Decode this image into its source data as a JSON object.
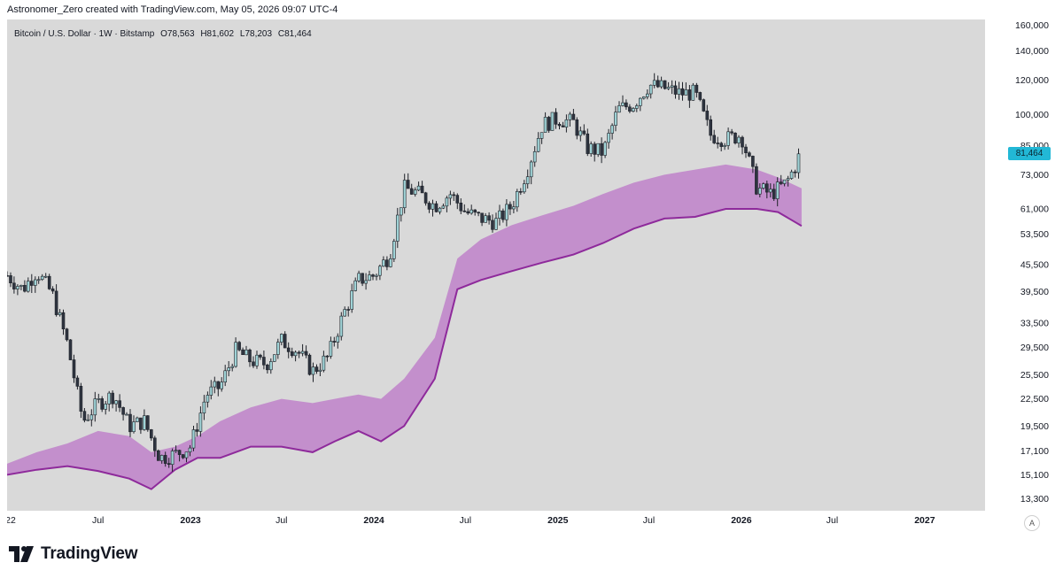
{
  "header": {
    "attribution": "Astronomer_Zero created with TradingView.com, May 05, 2026 09:07 UTC-4"
  },
  "legend": {
    "symbol": "Bitcoin / U.S. Dollar · 1W · Bitstamp",
    "open": "O78,563",
    "high": "H81,602",
    "low": "L78,203",
    "close": "C81,464"
  },
  "price_badge": "81,464",
  "footer": {
    "brand": "TradingView",
    "scale_button": "A"
  },
  "colors": {
    "background": "#d9d9d9",
    "candle_up": "#9fd3d6",
    "candle_down": "#2e3440",
    "band_fill": "#c38fcc",
    "band_line": "#8e2a9b",
    "badge": "#22b8d6"
  },
  "chart_data": {
    "type": "candlestick",
    "title": "",
    "xlabel": "",
    "ylabel": "",
    "y_scale": "log",
    "ylim": [
      12500,
      165000
    ],
    "xlim": [
      "2022-01-01",
      "2027-05-01"
    ],
    "x_ticks": [
      {
        "date": "2022-01-01",
        "label": "22"
      },
      {
        "date": "2022-07-01",
        "label": "Jul"
      },
      {
        "date": "2023-01-01",
        "label": "2023"
      },
      {
        "date": "2023-07-01",
        "label": "Jul"
      },
      {
        "date": "2024-01-01",
        "label": "2024"
      },
      {
        "date": "2024-07-01",
        "label": "Jul"
      },
      {
        "date": "2025-01-01",
        "label": "2025"
      },
      {
        "date": "2025-07-01",
        "label": "Jul"
      },
      {
        "date": "2026-01-01",
        "label": "2026"
      },
      {
        "date": "2026-07-01",
        "label": "Jul"
      },
      {
        "date": "2027-01-01",
        "label": "2027"
      }
    ],
    "y_ticks": [
      "160,000",
      "140,000",
      "120,000",
      "100,000",
      "85,000",
      "73,000",
      "61,000",
      "53,500",
      "45,500",
      "39,500",
      "33,500",
      "29,500",
      "25,500",
      "22,500",
      "19,500",
      "17,100",
      "15,100",
      "13,300"
    ],
    "price_path": [
      [
        "2022-01-01",
        43000
      ],
      [
        "2022-02-01",
        40000
      ],
      [
        "2022-03-01",
        44000
      ],
      [
        "2022-04-01",
        39000
      ],
      [
        "2022-05-01",
        30000
      ],
      [
        "2022-06-01",
        20000
      ],
      [
        "2022-07-01",
        22000
      ],
      [
        "2022-08-01",
        23000
      ],
      [
        "2022-09-01",
        19500
      ],
      [
        "2022-10-01",
        20000
      ],
      [
        "2022-11-01",
        16500
      ],
      [
        "2022-12-01",
        16800
      ],
      [
        "2023-01-01",
        17500
      ],
      [
        "2023-02-01",
        23000
      ],
      [
        "2023-03-01",
        24000
      ],
      [
        "2023-04-01",
        29000
      ],
      [
        "2023-05-01",
        27500
      ],
      [
        "2023-06-01",
        27000
      ],
      [
        "2023-07-01",
        30500
      ],
      [
        "2023-08-01",
        29000
      ],
      [
        "2023-09-01",
        26000
      ],
      [
        "2023-10-01",
        28000
      ],
      [
        "2023-11-01",
        35000
      ],
      [
        "2023-12-01",
        42000
      ],
      [
        "2024-01-01",
        43000
      ],
      [
        "2024-02-01",
        48000
      ],
      [
        "2024-03-01",
        68000
      ],
      [
        "2024-04-01",
        66000
      ],
      [
        "2024-05-01",
        62000
      ],
      [
        "2024-06-01",
        66000
      ],
      [
        "2024-07-01",
        60000
      ],
      [
        "2024-08-01",
        58000
      ],
      [
        "2024-09-01",
        57000
      ],
      [
        "2024-10-01",
        62000
      ],
      [
        "2024-11-01",
        75000
      ],
      [
        "2024-12-01",
        95000
      ],
      [
        "2025-01-01",
        98000
      ],
      [
        "2025-02-01",
        96000
      ],
      [
        "2025-03-01",
        84000
      ],
      [
        "2025-04-01",
        82000
      ],
      [
        "2025-05-01",
        103000
      ],
      [
        "2025-06-01",
        106000
      ],
      [
        "2025-07-01",
        117000
      ],
      [
        "2025-08-01",
        115000
      ],
      [
        "2025-09-01",
        112000
      ],
      [
        "2025-10-01",
        112000
      ],
      [
        "2025-11-01",
        90000
      ],
      [
        "2025-12-01",
        88000
      ],
      [
        "2026-01-01",
        90000
      ],
      [
        "2026-02-01",
        68000
      ],
      [
        "2026-03-01",
        66000
      ],
      [
        "2026-04-01",
        70000
      ],
      [
        "2026-05-01",
        81464
      ]
    ],
    "band": [
      [
        "2022-01-01",
        16000,
        15100
      ],
      [
        "2022-03-01",
        17000,
        15500
      ],
      [
        "2022-05-01",
        17800,
        15800
      ],
      [
        "2022-07-01",
        19000,
        15400
      ],
      [
        "2022-09-01",
        18500,
        14800
      ],
      [
        "2022-10-15",
        17000,
        14000
      ],
      [
        "2022-12-01",
        17500,
        15500
      ],
      [
        "2023-01-15",
        18500,
        16500
      ],
      [
        "2023-03-01",
        20000,
        16500
      ],
      [
        "2023-05-01",
        21500,
        17500
      ],
      [
        "2023-07-01",
        22500,
        17500
      ],
      [
        "2023-09-01",
        22000,
        17000
      ],
      [
        "2023-10-15",
        22500,
        18000
      ],
      [
        "2023-12-01",
        23000,
        19000
      ],
      [
        "2024-01-15",
        22500,
        18000
      ],
      [
        "2024-03-01",
        25000,
        19500
      ],
      [
        "2024-05-01",
        31000,
        25000
      ],
      [
        "2024-06-15",
        47000,
        40000
      ],
      [
        "2024-08-01",
        52000,
        42000
      ],
      [
        "2024-10-01",
        56000,
        44000
      ],
      [
        "2024-12-01",
        59000,
        46000
      ],
      [
        "2025-02-01",
        62000,
        48000
      ],
      [
        "2025-04-01",
        66000,
        51000
      ],
      [
        "2025-06-01",
        70000,
        55000
      ],
      [
        "2025-08-01",
        73000,
        58000
      ],
      [
        "2025-10-01",
        75000,
        58500
      ],
      [
        "2025-12-01",
        77000,
        61000
      ],
      [
        "2026-02-01",
        75000,
        61000
      ],
      [
        "2026-03-15",
        72000,
        60000
      ],
      [
        "2026-05-01",
        68000,
        55800
      ]
    ]
  }
}
